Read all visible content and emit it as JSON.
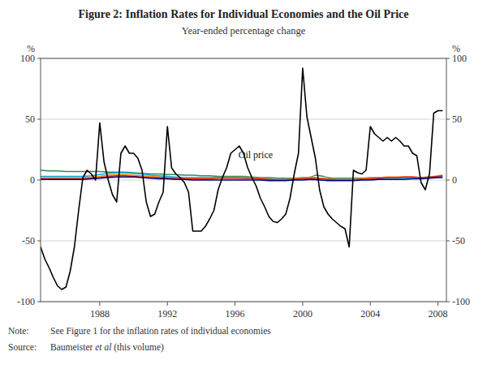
{
  "chart_data": {
    "type": "line",
    "title": "Figure 2: Inflation Rates for Individual Economies and the Oil Price",
    "subtitle": "Year-ended percentage change",
    "y_label": "%",
    "y2_label": "%",
    "note_label": "Note:",
    "note": "See Figure 1 for the inflation rates of individual economies",
    "source_label": "Source:",
    "source": [
      "Baumeister ",
      "et al",
      " (this volume)"
    ],
    "annotations": [
      {
        "text": "Oil price",
        "x": 1996.2,
        "y": 18
      }
    ],
    "xlim": [
      1984.5,
      2008.5
    ],
    "xticks": [
      1988,
      1992,
      1996,
      2000,
      2004,
      2008
    ],
    "ylim": [
      -100,
      100
    ],
    "yticks": [
      -100,
      -50,
      0,
      50,
      100
    ],
    "y2lim": [
      -100,
      100
    ],
    "y2ticks": [
      -100,
      -50,
      0,
      50,
      100
    ],
    "grid": true,
    "series": [
      {
        "color": "#2e8b57",
        "x": [
          1984.5,
          1985.0,
          1985.5,
          1986.0,
          1986.5,
          1987.0,
          1987.5,
          1988.0,
          1988.5,
          1989.0,
          1989.5,
          1990.0,
          1990.5,
          1991.0,
          1991.5,
          1992.0,
          1992.5,
          1993.0,
          1993.5,
          1994.0,
          1994.5,
          1995.0,
          1995.5,
          1996.0,
          1996.5,
          1997.0,
          1997.5,
          1998.0,
          1998.5,
          1999.0,
          1999.5,
          2000.0,
          2000.25,
          2000.5,
          2000.75,
          2001.0,
          2001.25,
          2001.5,
          2001.75,
          2002.0,
          2002.5,
          2003.0,
          2003.5,
          2004.0,
          2004.5,
          2005.0,
          2005.5,
          2006.0,
          2006.5,
          2007.0,
          2007.5,
          2008.0,
          2008.25
        ],
        "values": [
          8,
          7.5,
          7.5,
          7,
          7,
          7,
          7,
          7,
          6.5,
          6.5,
          6.5,
          6,
          5.5,
          5,
          5,
          4.5,
          4.5,
          4,
          4,
          3.5,
          3.5,
          3,
          3,
          3,
          3,
          2.5,
          2,
          2,
          1.5,
          1.5,
          1.5,
          2,
          2,
          2.5,
          4,
          3.5,
          3,
          2,
          1.5,
          1.5,
          1.5,
          1.5,
          1.5,
          2,
          2,
          2,
          2,
          2,
          2,
          2,
          2,
          2.5,
          3
        ]
      },
      {
        "color": "#00aaee",
        "x": [
          1984.5,
          1985.0,
          1985.5,
          1986.0,
          1986.5,
          1987.0,
          1987.5,
          1988.0,
          1988.5,
          1989.0,
          1989.5,
          1990.0,
          1990.5,
          1991.0,
          1991.5,
          1992.0,
          1992.5,
          1993.0,
          1993.5,
          1994.0,
          1994.5,
          1995.0,
          1995.5,
          1996.0,
          1996.5,
          1997.0,
          1997.5,
          1998.0,
          1998.5,
          1999.0,
          1999.5,
          2000.0,
          2000.5,
          2001.0,
          2001.5,
          2002.0,
          2002.5,
          2003.0,
          2003.5,
          2004.0,
          2004.5,
          2005.0,
          2005.5,
          2006.0,
          2006.5,
          2007.0,
          2007.5,
          2008.0,
          2008.25
        ],
        "values": [
          3,
          3,
          3,
          3,
          3,
          3,
          3.5,
          4.5,
          5.5,
          6,
          6,
          5.5,
          5,
          4,
          3.5,
          3,
          2.5,
          2,
          2,
          2,
          2,
          2,
          2,
          2,
          1.5,
          1.5,
          1,
          0.5,
          0.5,
          1,
          1,
          1.5,
          2,
          1.5,
          1,
          0.5,
          0.5,
          0.5,
          0.5,
          1,
          1,
          1.5,
          1.5,
          1.5,
          1.5,
          1.5,
          2,
          2.5,
          3
        ]
      },
      {
        "color": "#ff8c00",
        "x": [
          1984.5,
          1985.0,
          1985.5,
          1986.0,
          1986.5,
          1987.0,
          1987.5,
          1988.0,
          1988.5,
          1989.0,
          1989.5,
          1990.0,
          1990.5,
          1991.0,
          1991.5,
          1992.0,
          1992.5,
          1993.0,
          1993.5,
          1994.0,
          1994.5,
          1995.0,
          1995.5,
          1996.0,
          1996.5,
          1997.0,
          1997.5,
          1998.0,
          1998.5,
          1999.0,
          1999.5,
          2000.0,
          2000.5,
          2001.0,
          2001.5,
          2002.0,
          2002.5,
          2003.0,
          2003.5,
          2004.0,
          2004.5,
          2005.0,
          2005.5,
          2006.0,
          2006.5,
          2007.0,
          2007.5,
          2008.0,
          2008.25
        ],
        "values": [
          2,
          2,
          2,
          2,
          2,
          2,
          2.5,
          3,
          4,
          4.5,
          4.5,
          4,
          3.5,
          3,
          2.5,
          2,
          2,
          1.5,
          1.5,
          1.5,
          1.5,
          2,
          2,
          2,
          2,
          2,
          1.5,
          0.5,
          0.5,
          0.5,
          1,
          1.5,
          2.5,
          1.5,
          1,
          0.5,
          0.5,
          0.5,
          1,
          2,
          2,
          2.5,
          2.5,
          2.5,
          2.5,
          2,
          2.5,
          3.5,
          4
        ]
      },
      {
        "color": "#cc2222",
        "x": [
          1984.5,
          1985.0,
          1985.5,
          1986.0,
          1986.5,
          1987.0,
          1987.5,
          1988.0,
          1988.5,
          1989.0,
          1989.5,
          1990.0,
          1990.5,
          1991.0,
          1991.5,
          1992.0,
          1992.5,
          1993.0,
          1993.5,
          1994.0,
          1994.5,
          1995.0,
          1995.5,
          1996.0,
          1996.5,
          1997.0,
          1997.5,
          1998.0,
          1998.5,
          1999.0,
          1999.5,
          2000.0,
          2000.5,
          2001.0,
          2001.5,
          2002.0,
          2002.5,
          2003.0,
          2003.5,
          2004.0,
          2004.5,
          2005.0,
          2005.5,
          2006.0,
          2006.5,
          2007.0,
          2007.5,
          2008.0,
          2008.25
        ],
        "values": [
          1,
          1,
          1,
          1,
          1,
          1,
          1.5,
          2,
          3,
          3.5,
          3.5,
          3,
          2.5,
          2,
          2,
          1.5,
          1.5,
          1,
          1,
          1,
          1,
          1.5,
          1.5,
          1.5,
          1.5,
          1.5,
          1,
          0.5,
          0,
          0,
          0.5,
          1,
          1.5,
          1,
          0.5,
          0,
          0,
          0,
          0.5,
          1,
          1.5,
          2,
          2,
          2.5,
          2.5,
          2,
          2.5,
          3,
          3.5
        ]
      },
      {
        "color": "#000080",
        "x": [
          1984.5,
          1985.0,
          1985.5,
          1986.0,
          1986.5,
          1987.0,
          1987.5,
          1988.0,
          1988.5,
          1989.0,
          1989.5,
          1990.0,
          1990.5,
          1991.0,
          1991.5,
          1992.0,
          1992.5,
          1993.0,
          1993.5,
          1994.0,
          1994.5,
          1995.0,
          1995.5,
          1996.0,
          1996.5,
          1997.0,
          1997.5,
          1998.0,
          1998.5,
          1999.0,
          1999.5,
          2000.0,
          2000.5,
          2001.0,
          2001.5,
          2002.0,
          2002.5,
          2003.0,
          2003.5,
          2004.0,
          2004.5,
          2005.0,
          2005.5,
          2006.0,
          2006.5,
          2007.0,
          2007.5,
          2008.0,
          2008.25
        ],
        "values": [
          0.5,
          0.5,
          0.5,
          0.5,
          0.5,
          0.5,
          1,
          1.5,
          2,
          2.5,
          2.5,
          2.5,
          2,
          1.5,
          1,
          1,
          0.5,
          0.5,
          0,
          0,
          0,
          0,
          0,
          0,
          0,
          0,
          0,
          -0.5,
          -0.5,
          -0.5,
          0,
          0,
          0.5,
          0,
          -0.5,
          -0.5,
          -0.5,
          -0.5,
          0,
          0,
          0.5,
          0.5,
          0.5,
          0.5,
          1,
          1,
          1.5,
          2,
          2
        ]
      },
      {
        "color": "#000000",
        "x": [
          1984.5,
          1984.75,
          1985.0,
          1985.25,
          1985.5,
          1985.75,
          1986.0,
          1986.25,
          1986.5,
          1986.75,
          1987.0,
          1987.25,
          1987.5,
          1987.75,
          1988.0,
          1988.25,
          1988.5,
          1988.75,
          1989.0,
          1989.25,
          1989.5,
          1989.75,
          1990.0,
          1990.25,
          1990.5,
          1990.75,
          1991.0,
          1991.25,
          1991.5,
          1991.75,
          1992.0,
          1992.25,
          1992.5,
          1992.75,
          1993.0,
          1993.25,
          1993.5,
          1993.75,
          1994.0,
          1994.25,
          1994.5,
          1994.75,
          1995.0,
          1995.25,
          1995.5,
          1995.75,
          1996.0,
          1996.25,
          1996.5,
          1996.75,
          1997.0,
          1997.25,
          1997.5,
          1997.75,
          1998.0,
          1998.25,
          1998.5,
          1998.75,
          1999.0,
          1999.25,
          1999.5,
          1999.75,
          2000.0,
          2000.25,
          2000.5,
          2000.75,
          2001.0,
          2001.25,
          2001.5,
          2001.75,
          2002.0,
          2002.25,
          2002.5,
          2002.75,
          2003.0,
          2003.25,
          2003.5,
          2003.75,
          2004.0,
          2004.25,
          2004.5,
          2004.75,
          2005.0,
          2005.25,
          2005.5,
          2005.75,
          2006.0,
          2006.25,
          2006.5,
          2006.75,
          2007.0,
          2007.25,
          2007.5,
          2007.75,
          2008.0,
          2008.25
        ],
        "values": [
          -55,
          -65,
          -72,
          -80,
          -87,
          -90,
          -88,
          -75,
          -55,
          -25,
          2,
          8,
          5,
          0,
          47,
          15,
          0,
          -12,
          -18,
          22,
          28,
          22,
          22,
          18,
          8,
          -18,
          -30,
          -28,
          -18,
          -10,
          44,
          10,
          5,
          2,
          -2,
          -10,
          -42,
          -42,
          -42,
          -38,
          -32,
          -25,
          -8,
          2,
          10,
          22,
          25,
          28,
          22,
          10,
          2,
          -5,
          -15,
          -22,
          -30,
          -34,
          -35,
          -32,
          -28,
          -15,
          5,
          22,
          92,
          52,
          35,
          18,
          -8,
          -22,
          -28,
          -32,
          -35,
          -38,
          -40,
          -55,
          8,
          6,
          5,
          8,
          44,
          38,
          35,
          32,
          35,
          32,
          35,
          32,
          28,
          28,
          22,
          20,
          -2,
          -8,
          5,
          55,
          57,
          57
        ]
      }
    ]
  }
}
